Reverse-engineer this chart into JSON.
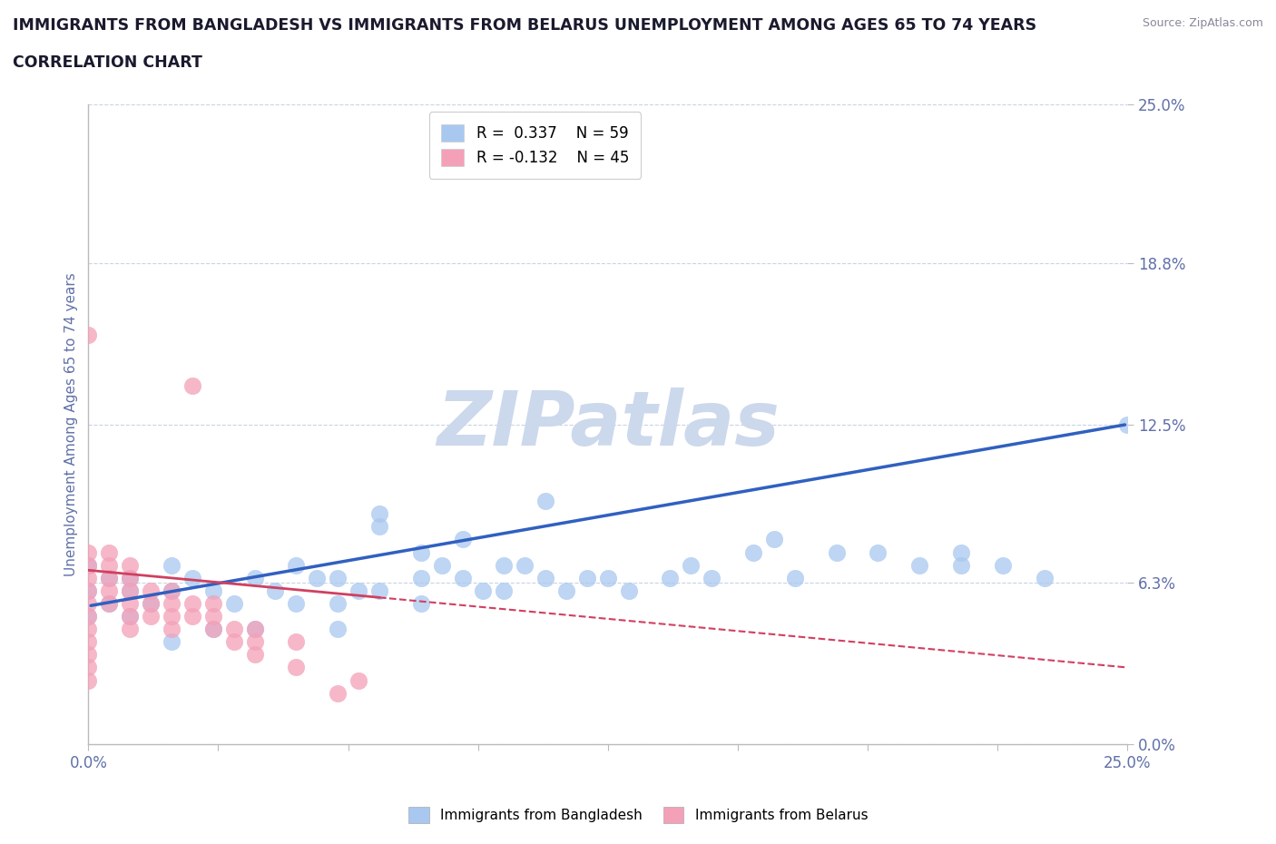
{
  "title_line1": "IMMIGRANTS FROM BANGLADESH VS IMMIGRANTS FROM BELARUS UNEMPLOYMENT AMONG AGES 65 TO 74 YEARS",
  "title_line2": "CORRELATION CHART",
  "source": "Source: ZipAtlas.com",
  "ylabel": "Unemployment Among Ages 65 to 74 years",
  "xmin": 0.0,
  "xmax": 0.25,
  "ymin": 0.0,
  "ymax": 0.25,
  "yticks": [
    0.0,
    0.063,
    0.125,
    0.188,
    0.25
  ],
  "ytick_labels": [
    "0.0%",
    "6.3%",
    "12.5%",
    "18.8%",
    "25.0%"
  ],
  "xticks": [
    0.0,
    0.03125,
    0.0625,
    0.09375,
    0.125,
    0.15625,
    0.1875,
    0.21875,
    0.25
  ],
  "xtick_labels": [
    "0.0%",
    "",
    "",
    "",
    "",
    "",
    "",
    "",
    "25.0%"
  ],
  "bangladesh_R": 0.337,
  "bangladesh_N": 59,
  "belarus_R": -0.132,
  "belarus_N": 45,
  "bangladesh_color": "#a8c8f0",
  "belarus_color": "#f4a0b8",
  "trend_bangladesh_color": "#3060c0",
  "trend_belarus_color": "#d04060",
  "background_color": "#ffffff",
  "grid_color": "#c8d4e8",
  "watermark": "ZIPatlas",
  "watermark_color": "#ccd8ec",
  "title_color": "#1a1a2e",
  "axis_label_color": "#6070a8",
  "bangladesh_x": [
    0.0,
    0.0,
    0.0,
    0.005,
    0.005,
    0.01,
    0.01,
    0.01,
    0.015,
    0.02,
    0.02,
    0.02,
    0.025,
    0.03,
    0.03,
    0.035,
    0.04,
    0.04,
    0.045,
    0.05,
    0.05,
    0.055,
    0.06,
    0.06,
    0.065,
    0.07,
    0.07,
    0.08,
    0.08,
    0.085,
    0.09,
    0.095,
    0.1,
    0.1,
    0.105,
    0.11,
    0.115,
    0.12,
    0.125,
    0.13,
    0.14,
    0.145,
    0.15,
    0.16,
    0.165,
    0.17,
    0.18,
    0.19,
    0.2,
    0.21,
    0.22,
    0.23,
    0.25,
    0.11,
    0.09,
    0.07,
    0.06,
    0.08,
    0.21
  ],
  "bangladesh_y": [
    0.05,
    0.06,
    0.07,
    0.055,
    0.065,
    0.05,
    0.06,
    0.065,
    0.055,
    0.04,
    0.06,
    0.07,
    0.065,
    0.045,
    0.06,
    0.055,
    0.045,
    0.065,
    0.06,
    0.055,
    0.07,
    0.065,
    0.055,
    0.065,
    0.06,
    0.06,
    0.085,
    0.065,
    0.075,
    0.07,
    0.065,
    0.06,
    0.06,
    0.07,
    0.07,
    0.065,
    0.06,
    0.065,
    0.065,
    0.06,
    0.065,
    0.07,
    0.065,
    0.075,
    0.08,
    0.065,
    0.075,
    0.075,
    0.07,
    0.075,
    0.07,
    0.065,
    0.125,
    0.095,
    0.08,
    0.09,
    0.045,
    0.055,
    0.07
  ],
  "belarus_x": [
    0.0,
    0.0,
    0.0,
    0.0,
    0.0,
    0.0,
    0.0,
    0.0,
    0.0,
    0.0,
    0.0,
    0.0,
    0.005,
    0.005,
    0.005,
    0.005,
    0.005,
    0.01,
    0.01,
    0.01,
    0.01,
    0.01,
    0.01,
    0.015,
    0.015,
    0.015,
    0.02,
    0.02,
    0.02,
    0.02,
    0.025,
    0.025,
    0.025,
    0.03,
    0.03,
    0.03,
    0.035,
    0.035,
    0.04,
    0.04,
    0.04,
    0.05,
    0.05,
    0.06,
    0.065
  ],
  "belarus_y": [
    0.06,
    0.055,
    0.05,
    0.045,
    0.04,
    0.035,
    0.03,
    0.025,
    0.065,
    0.07,
    0.075,
    0.16,
    0.055,
    0.06,
    0.065,
    0.07,
    0.075,
    0.045,
    0.05,
    0.055,
    0.06,
    0.065,
    0.07,
    0.05,
    0.055,
    0.06,
    0.045,
    0.05,
    0.055,
    0.06,
    0.05,
    0.055,
    0.14,
    0.045,
    0.05,
    0.055,
    0.04,
    0.045,
    0.035,
    0.04,
    0.045,
    0.03,
    0.04,
    0.02,
    0.025
  ],
  "trend_bang_x0": 0.0,
  "trend_bang_y0": 0.054,
  "trend_bang_x1": 0.25,
  "trend_bang_y1": 0.125,
  "trend_bel_x0": 0.0,
  "trend_bel_y0": 0.068,
  "trend_bel_x1": 0.25,
  "trend_bel_y1": 0.03
}
